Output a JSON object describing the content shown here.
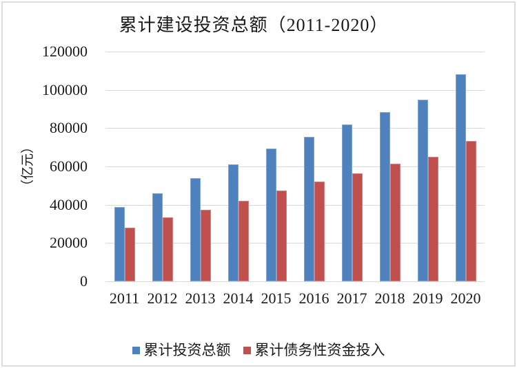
{
  "title": "累计建设投资总额（2011-2020）",
  "y_axis": {
    "title": "（亿元）",
    "tick_labels": [
      "120000",
      "100000",
      "80000",
      "60000",
      "40000",
      "20000",
      "0"
    ]
  },
  "chart_data": {
    "type": "bar",
    "title": "累计建设投资总额（2011-2020）",
    "categories": [
      "2011",
      "2012",
      "2013",
      "2014",
      "2015",
      "2016",
      "2017",
      "2018",
      "2019",
      "2020"
    ],
    "series": [
      {
        "name": "累计投资总额",
        "color": "#4F81BD",
        "border_color": "#7EA6D4",
        "values": [
          38700,
          46000,
          54000,
          61200,
          69200,
          75500,
          82000,
          88500,
          95000,
          108000
        ]
      },
      {
        "name": "累计债务性资金投入",
        "color": "#C0504D",
        "border_color": "#D28280",
        "values": [
          28000,
          33500,
          37300,
          42200,
          47300,
          52000,
          56500,
          61500,
          65200,
          73200
        ]
      }
    ],
    "xlabel": "",
    "ylabel": "（亿元）",
    "ylim": [
      0,
      120000
    ],
    "ytick_step": 20000,
    "grid": true,
    "gridline_color": "#D9D9D9",
    "legend_position": "bottom"
  }
}
